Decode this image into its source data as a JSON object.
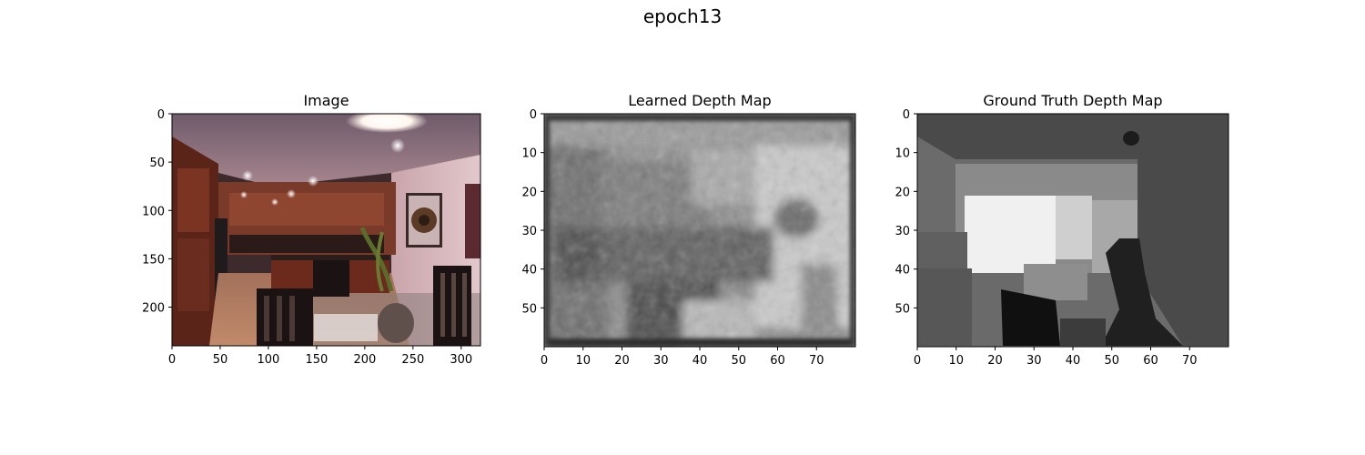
{
  "figure": {
    "suptitle": "epoch13"
  },
  "chart_data": [
    {
      "type": "heatmap",
      "title": "Image",
      "xlabel": "",
      "ylabel": "",
      "content": "RGB photograph of a kitchen and dining area",
      "xlim": [
        0,
        320
      ],
      "ylim": [
        240,
        0
      ],
      "xticks": [
        0,
        50,
        100,
        150,
        200,
        250,
        300
      ],
      "yticks": [
        0,
        50,
        100,
        150,
        200
      ],
      "grid": false
    },
    {
      "type": "heatmap",
      "title": "Learned Depth Map",
      "xlabel": "",
      "ylabel": "",
      "colormap": "gray",
      "xlim": [
        0,
        80
      ],
      "ylim": [
        60,
        0
      ],
      "xticks": [
        0,
        10,
        20,
        30,
        40,
        50,
        60,
        70
      ],
      "yticks": [
        0,
        10,
        20,
        30,
        40,
        50
      ],
      "grid": false
    },
    {
      "type": "heatmap",
      "title": "Ground Truth Depth Map",
      "xlabel": "",
      "ylabel": "",
      "colormap": "gray",
      "xlim": [
        0,
        80
      ],
      "ylim": [
        60,
        0
      ],
      "xticks": [
        0,
        10,
        20,
        30,
        40,
        50,
        60,
        70
      ],
      "yticks": [
        0,
        10,
        20,
        30,
        40,
        50
      ],
      "grid": false
    }
  ]
}
